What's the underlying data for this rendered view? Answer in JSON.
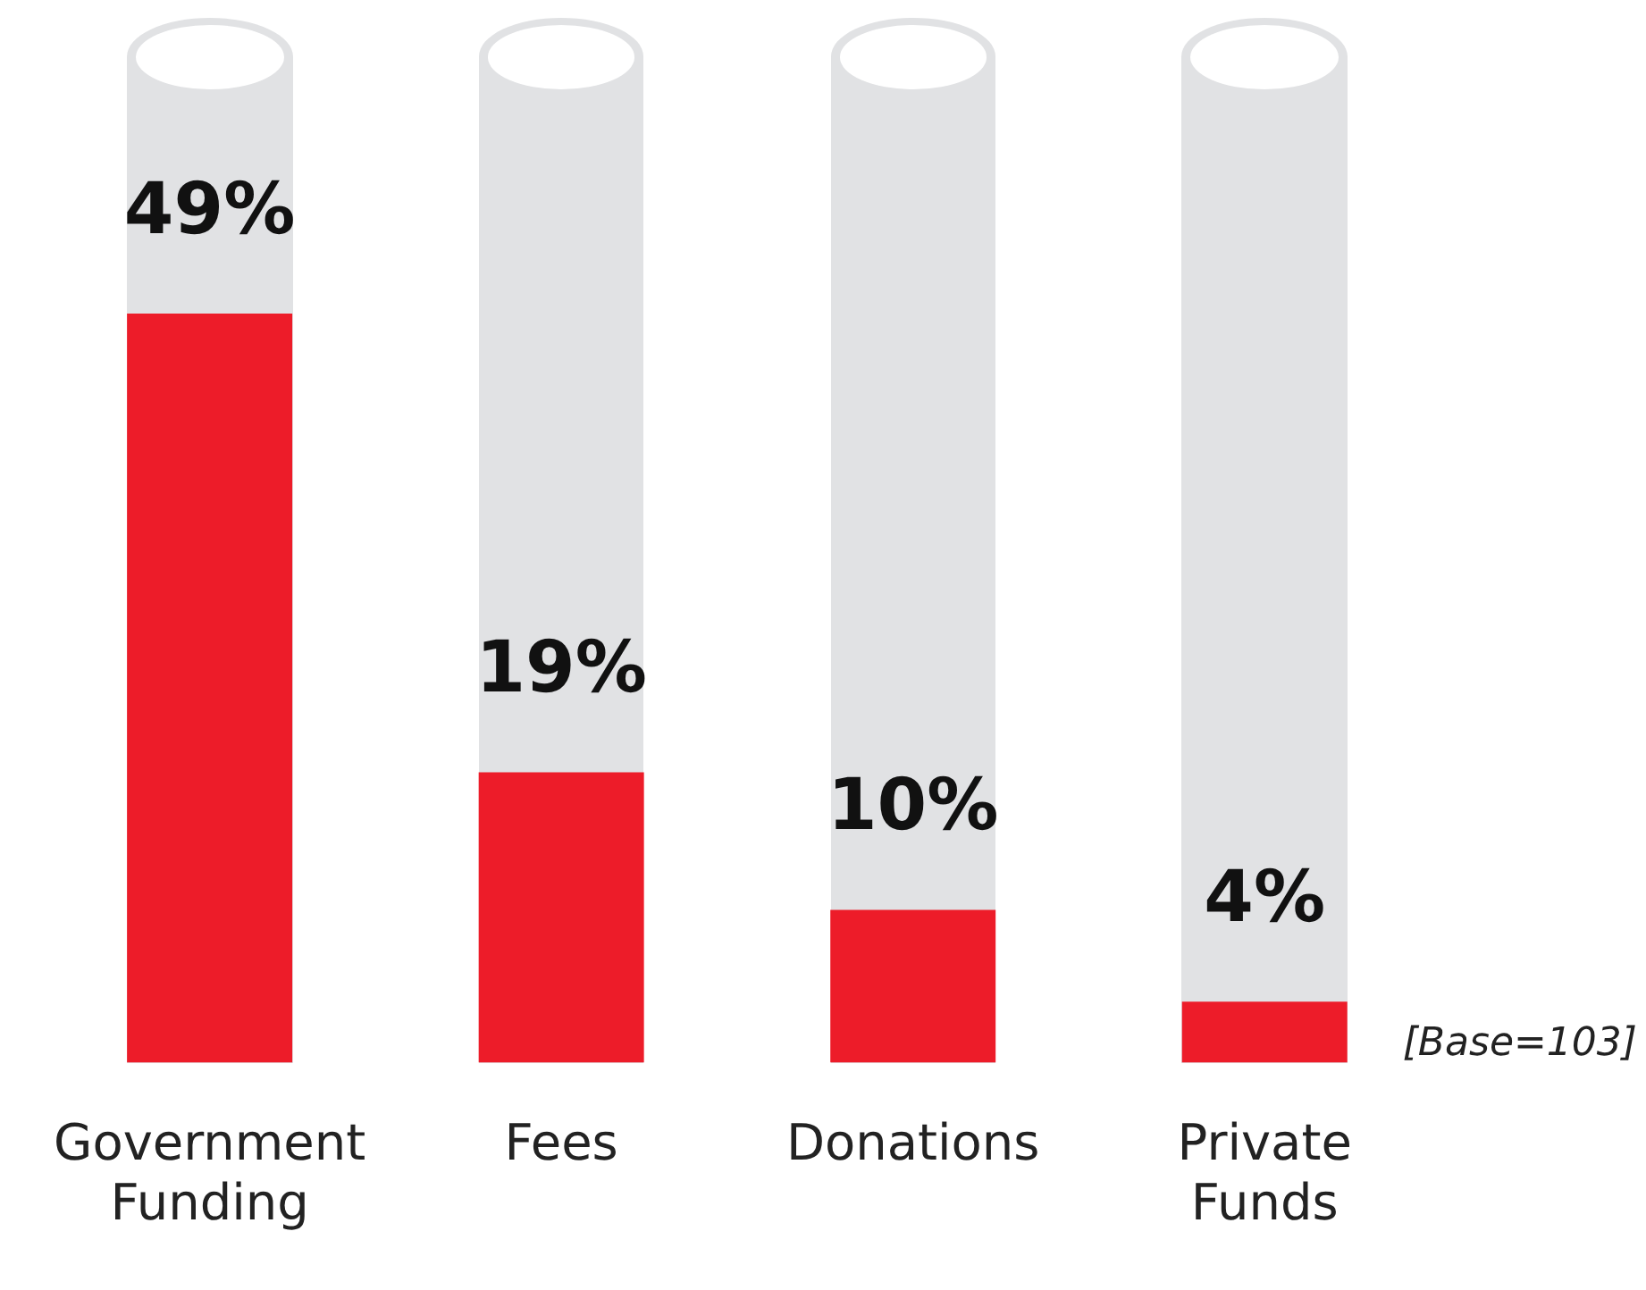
{
  "chart_data": {
    "type": "bar",
    "categories": [
      "Government Funding",
      "Fees",
      "Donations",
      "Private Funds"
    ],
    "values": [
      49,
      19,
      10,
      4
    ],
    "value_labels": [
      "49%",
      "19%",
      "10%",
      "4%"
    ],
    "color": "#ed1c29",
    "annotations": [
      "[Base=103]"
    ],
    "grid": false,
    "legend": false
  }
}
